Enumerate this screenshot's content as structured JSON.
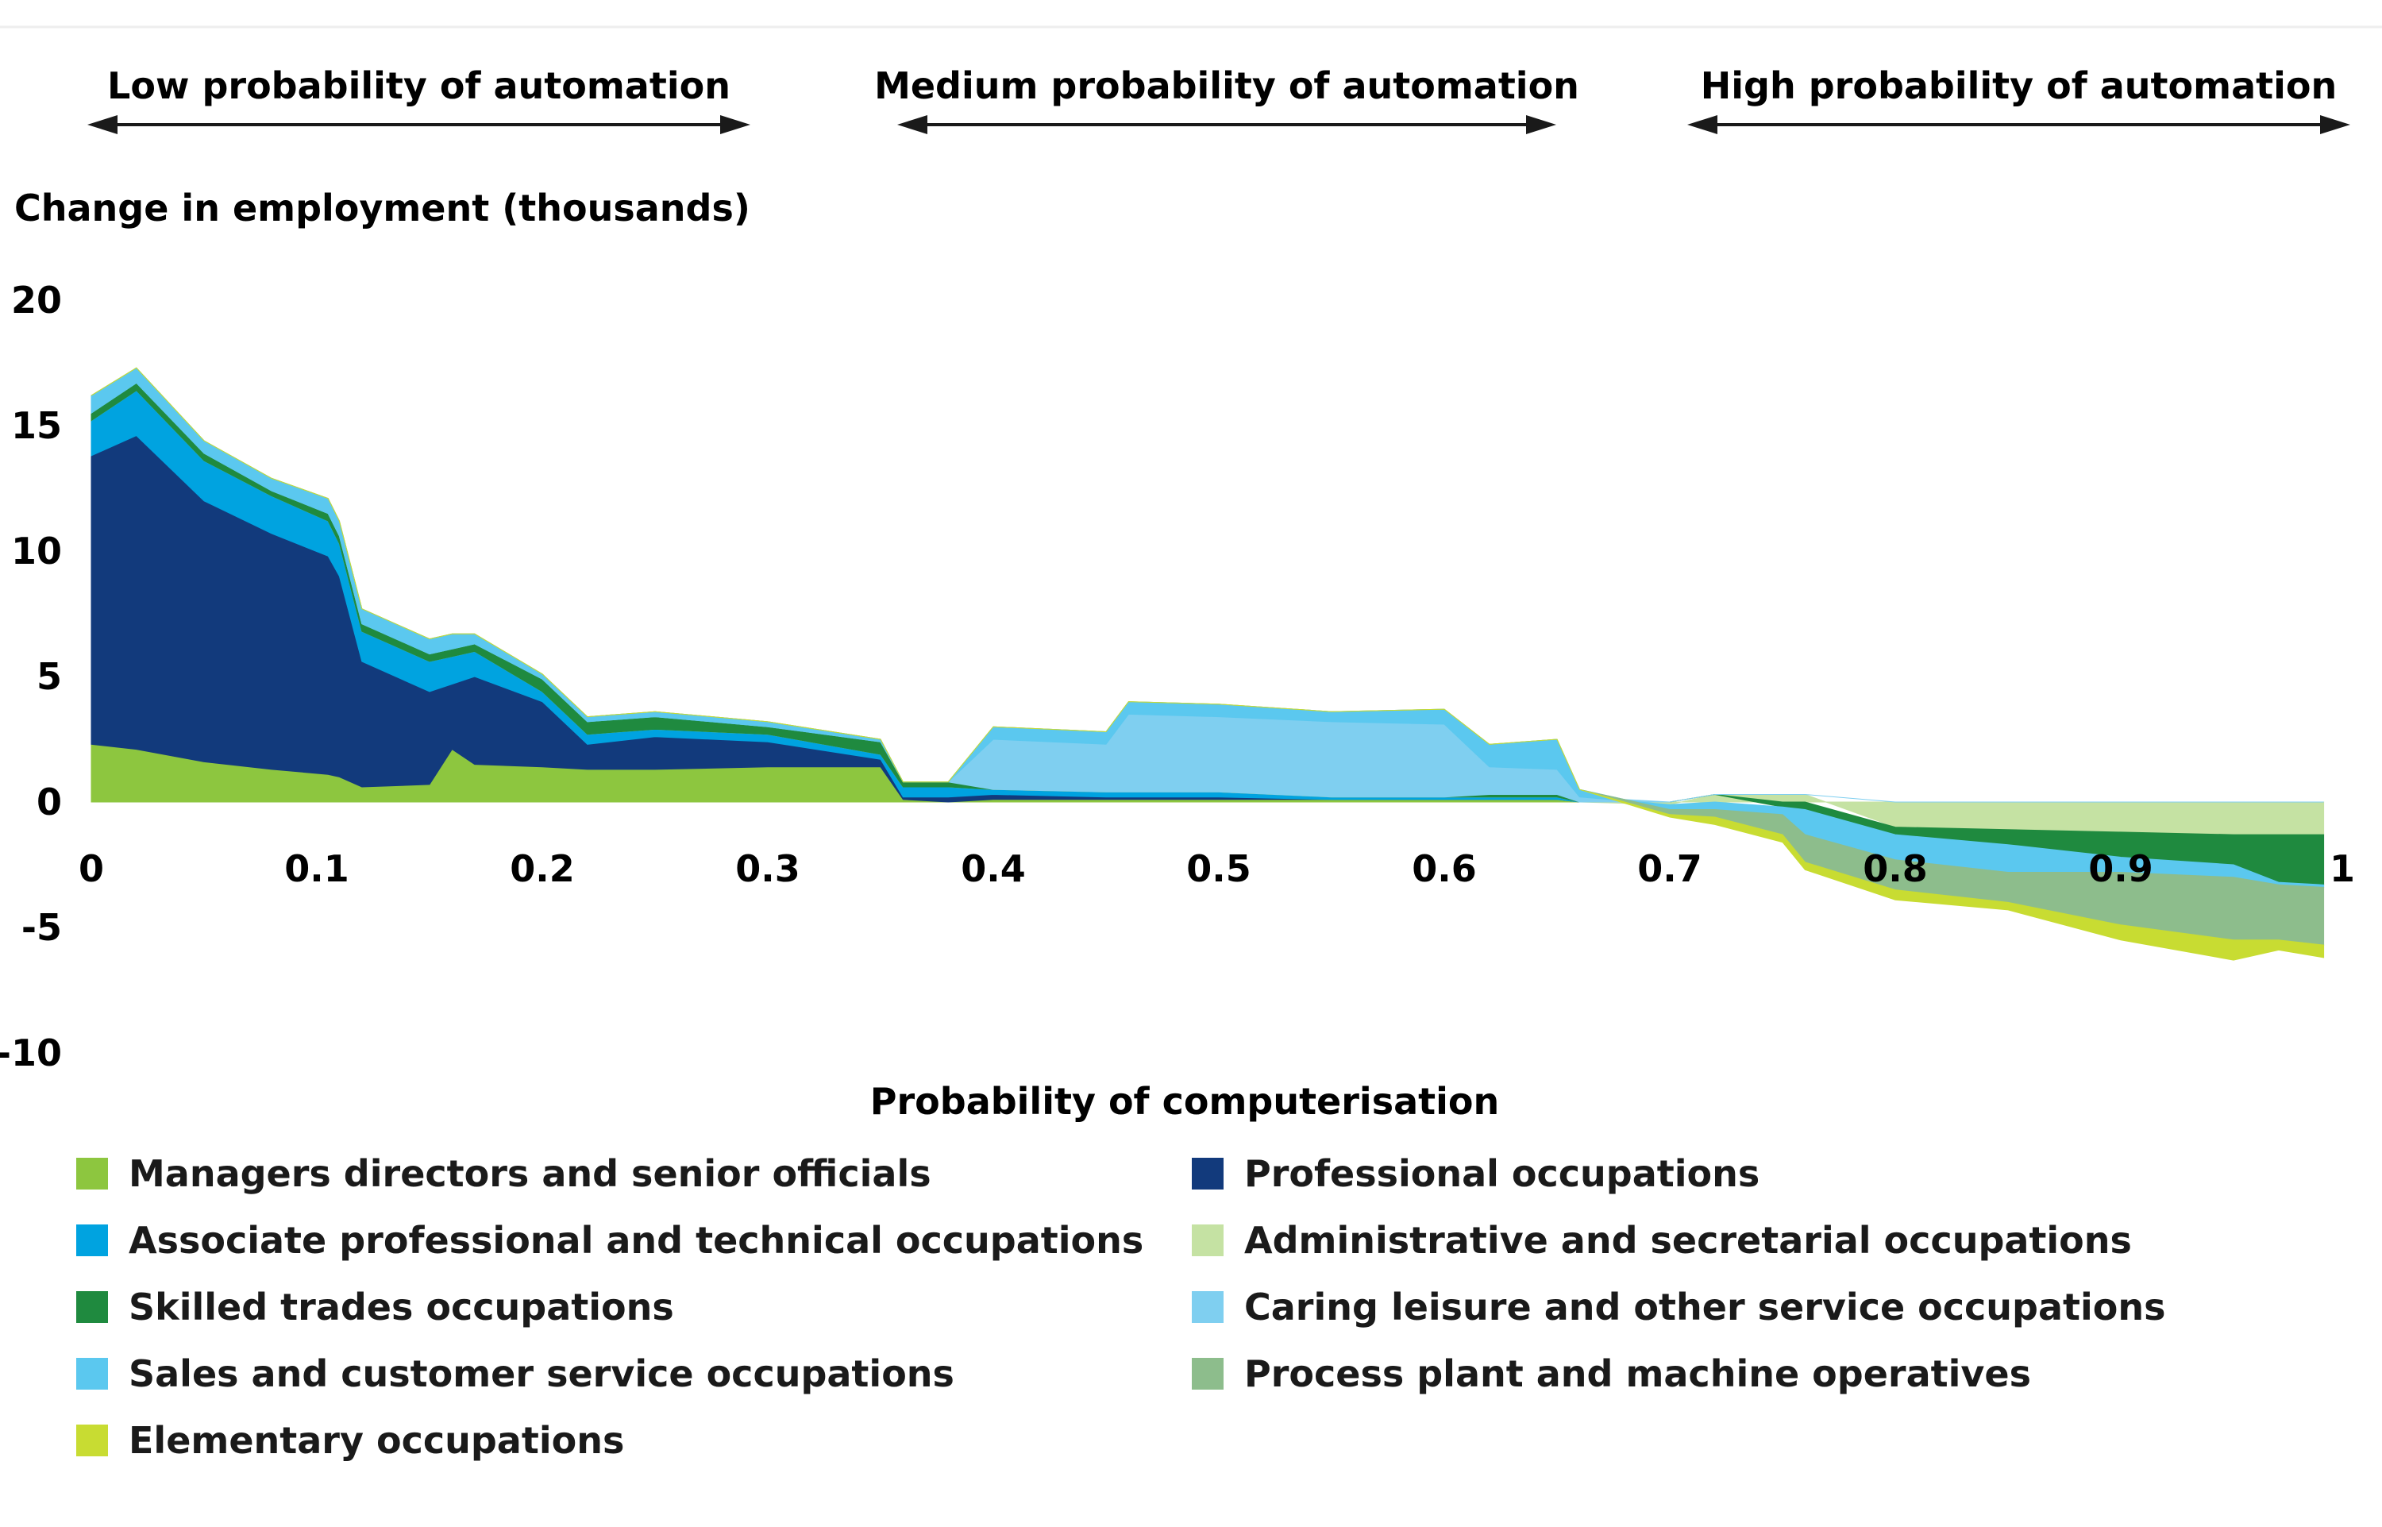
{
  "chart_data": {
    "type": "area",
    "title": "",
    "region_labels": [
      "Low probability of automation",
      "Medium probability of automation",
      "High probability of automation"
    ],
    "ylabel": "Change in employment (thousands)",
    "xlabel": "Probability of computerisation",
    "xlim": [
      0,
      1
    ],
    "ylim": [
      -10,
      20
    ],
    "xticks": [
      0,
      0.1,
      0.2,
      0.3,
      0.4,
      0.5,
      0.6,
      0.7,
      0.8,
      0.9,
      1
    ],
    "xtick_labels": [
      "0",
      "0.1",
      "0.2",
      "0.3",
      "0.4",
      "0.5",
      "0.6",
      "0.7",
      "0.8",
      "0.9",
      "1"
    ],
    "yticks": [
      20,
      15,
      10,
      5,
      0,
      -5,
      -10
    ],
    "ytick_labels": [
      "20",
      "15",
      "10",
      "5",
      "0",
      "-5",
      "-10"
    ],
    "grid": false,
    "legend_position": "bottom",
    "x": [
      0,
      0.02,
      0.05,
      0.08,
      0.105,
      0.11,
      0.12,
      0.15,
      0.16,
      0.17,
      0.2,
      0.22,
      0.25,
      0.3,
      0.35,
      0.36,
      0.38,
      0.4,
      0.45,
      0.46,
      0.5,
      0.55,
      0.6,
      0.62,
      0.65,
      0.66,
      0.7,
      0.72,
      0.75,
      0.76,
      0.8,
      0.85,
      0.9,
      0.95,
      0.97,
      0.99
    ],
    "series": [
      {
        "name": "Managers directors and senior officials",
        "color": "#8dc63f",
        "values": [
          2.3,
          2.1,
          1.6,
          1.3,
          1.1,
          1.0,
          0.6,
          0.7,
          2.1,
          1.5,
          1.4,
          1.3,
          1.3,
          1.4,
          1.4,
          0.1,
          0.0,
          0.1,
          0.1,
          0.1,
          0.1,
          0.1,
          0.1,
          0.1,
          0.1,
          0.0,
          0,
          0,
          0,
          0,
          0,
          0,
          0,
          0,
          0,
          0
        ]
      },
      {
        "name": "Professional occupations",
        "color": "#123a7c",
        "values": [
          11.5,
          12.5,
          10.4,
          9.4,
          8.7,
          8.0,
          5.0,
          3.7,
          2.6,
          3.5,
          2.6,
          1.0,
          1.3,
          1.0,
          0.3,
          0.1,
          0.2,
          0.2,
          0.1,
          0.1,
          0.1,
          0.0,
          0.0,
          0.0,
          0.0,
          0.0,
          0,
          0,
          0,
          0,
          0,
          0,
          0,
          0,
          0,
          0
        ]
      },
      {
        "name": "Associate professional and technical occupations",
        "color": "#00a3e0",
        "values": [
          1.4,
          1.8,
          1.6,
          1.5,
          1.4,
          1.3,
          1.2,
          1.2,
          1.1,
          1.0,
          0.4,
          0.4,
          0.3,
          0.3,
          0.2,
          0.4,
          0.4,
          0.2,
          0.2,
          0.2,
          0.2,
          0.1,
          0.1,
          0.1,
          0.1,
          0.0,
          0,
          0,
          0,
          0,
          0,
          0,
          0,
          0,
          0,
          0
        ]
      },
      {
        "name": "Administrative and secretarial occupations",
        "color": "#c5e2a3",
        "values": [
          0,
          0,
          0,
          0,
          0,
          0,
          0,
          0,
          0,
          0,
          0,
          0,
          0,
          0,
          0,
          0,
          0,
          0,
          0,
          0,
          0,
          0,
          0,
          0,
          0,
          0,
          -0.1,
          0.3,
          0.3,
          0.3,
          -1.0,
          -1.1,
          -1.2,
          -1.3,
          -1.3,
          -1.3
        ]
      },
      {
        "name": "Skilled trades occupations",
        "color": "#1f8a3f",
        "values": [
          0.3,
          0.3,
          0.3,
          0.2,
          0.3,
          0.3,
          0.3,
          0.3,
          0.3,
          0.3,
          0.5,
          0.5,
          0.5,
          0.3,
          0.5,
          0.2,
          0.2,
          0.0,
          0.0,
          0.0,
          0.0,
          0.0,
          0.0,
          0.1,
          0.1,
          0.0,
          0,
          0,
          -0.2,
          -0.3,
          -0.3,
          -0.6,
          -1.0,
          -1.2,
          -1.9,
          -2.0
        ]
      },
      {
        "name": "Caring leisure and other service occupations",
        "color": "#7fcff0",
        "values": [
          0,
          0,
          0,
          0,
          0,
          0,
          0,
          0,
          0,
          0,
          0,
          0,
          0,
          0,
          0,
          0,
          0,
          2.0,
          1.9,
          3.1,
          3.0,
          3.0,
          2.9,
          1.1,
          1.0,
          0.2,
          0,
          0,
          0,
          0,
          0,
          0,
          0,
          0,
          0,
          0
        ]
      },
      {
        "name": "Sales and customer service occupations",
        "color": "#5bc8ef",
        "values": [
          0.7,
          0.6,
          0.5,
          0.5,
          0.6,
          0.6,
          0.6,
          0.6,
          0.6,
          0.4,
          0.2,
          0.2,
          0.2,
          0.2,
          0.1,
          0.0,
          0.0,
          0.5,
          0.5,
          0.5,
          0.5,
          0.4,
          0.6,
          0.9,
          1.2,
          0.3,
          -0.2,
          -0.3,
          -0.3,
          -1.0,
          -1.0,
          -1.1,
          -0.6,
          -0.5,
          -0.1,
          -0.1
        ]
      },
      {
        "name": "Process plant and machine operatives",
        "color": "#8dbd8c",
        "values": [
          0,
          0,
          0,
          0,
          0,
          0,
          0,
          0,
          0,
          0,
          0,
          0,
          0,
          0,
          0,
          0,
          0,
          0,
          0,
          0,
          0,
          0,
          0,
          0,
          0,
          0,
          -0.2,
          -0.3,
          -0.8,
          -1.1,
          -1.2,
          -1.2,
          -2.1,
          -2.5,
          -2.2,
          -2.3
        ]
      },
      {
        "name": "Elementary occupations",
        "color": "#c8dc32",
        "values": [
          0,
          0,
          0,
          0,
          0,
          0,
          0,
          0,
          0,
          0,
          0,
          0,
          0,
          0,
          0,
          0,
          0,
          0,
          0,
          0,
          0,
          0,
          0,
          0,
          0,
          0,
          -0.1,
          -0.3,
          -0.3,
          -0.3,
          -0.4,
          -0.3,
          -0.6,
          -0.8,
          -0.4,
          -0.5
        ]
      }
    ],
    "legend_order": [
      "Managers directors and senior officials",
      "Professional occupations",
      "Associate professional and technical occupations",
      "Administrative and secretarial occupations",
      "Skilled trades occupations",
      "Caring leisure and other service occupations",
      "Sales and customer service occupations",
      "Process plant and machine operatives",
      "Elementary occupations"
    ]
  }
}
